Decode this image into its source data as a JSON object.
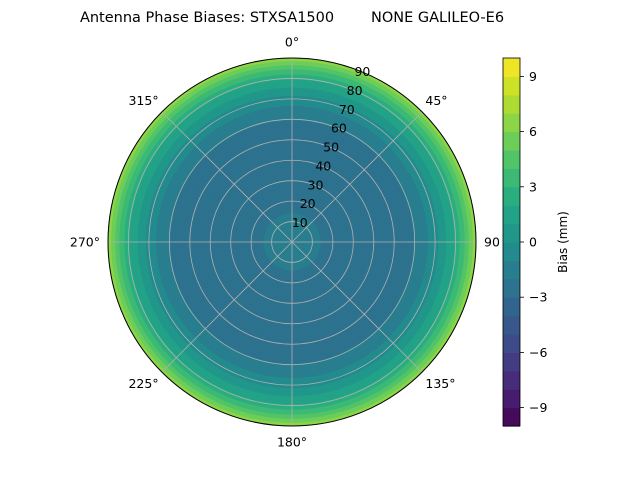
{
  "chart_data": {
    "type": "heatmap",
    "subtype": "polar-contour",
    "title": "Antenna Phase Biases: STXSA1500        NONE GALILEO-E6",
    "radial_axis": {
      "quantity": "zenith angle",
      "max": 90,
      "tick_values": [
        10,
        20,
        30,
        40,
        50,
        60,
        70,
        80,
        90
      ],
      "tick_labels": [
        "10",
        "20",
        "30",
        "40",
        "50",
        "60",
        "70",
        "80",
        "90"
      ]
    },
    "angular_axis": {
      "quantity": "azimuth",
      "direction": "clockwise",
      "zero_at": "top",
      "tick_values": [
        0,
        45,
        90,
        135,
        180,
        225,
        270,
        315
      ],
      "tick_labels": [
        "0°",
        "45°",
        "90",
        "135°",
        "180°",
        "225°",
        "270°",
        "315°"
      ]
    },
    "grid": true,
    "colorbar": {
      "label": "Bias (mm)",
      "colormap": "viridis",
      "min": -10,
      "max": 10,
      "level_step": 1,
      "tick_values": [
        -9,
        -6,
        -3,
        0,
        3,
        6,
        9
      ],
      "tick_labels": [
        "−9",
        "−6",
        "−3",
        "0",
        "3",
        "6",
        "9"
      ],
      "placement": "right"
    },
    "bias_profile": {
      "description_units": "zenith angle (deg) vs bias (mm)",
      "zenith": [
        0,
        10,
        20,
        30,
        40,
        50,
        60,
        70,
        80,
        85,
        90
      ],
      "bias": [
        -1.5,
        -1.8,
        -2.3,
        -2.8,
        -3.0,
        -2.8,
        -2.0,
        -0.5,
        2.0,
        4.0,
        6.5
      ]
    }
  }
}
